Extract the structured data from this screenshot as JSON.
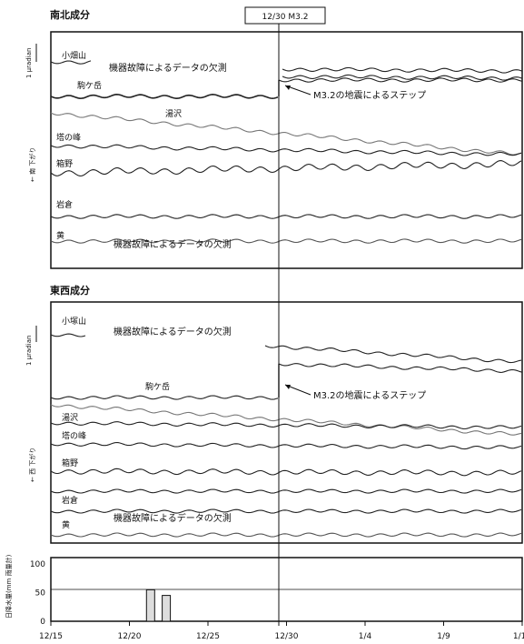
{
  "chart_data": [
    {
      "type": "line",
      "title": "南北成分",
      "scale_label": "1 μradian",
      "direction_label": "← 南 下がり",
      "event_label": "12/30 M3.2",
      "series": [
        {
          "name": "小畑山"
        },
        {
          "name": "駒ケ岳"
        },
        {
          "name": "湯沢"
        },
        {
          "name": "塔の峰"
        },
        {
          "name": "箱野"
        },
        {
          "name": "岩倉"
        },
        {
          "name": "黄"
        }
      ],
      "annotations": [
        "機器故障によるデータの欠測",
        "M3.2の地震によるステップ",
        "機器故障によるデータの欠測"
      ]
    },
    {
      "type": "line",
      "title": "東西成分",
      "scale_label": "1 μradian",
      "direction_label": "← 西 下がり",
      "series": [
        {
          "name": "小塚山"
        },
        {
          "name": "駒ケ岳"
        },
        {
          "name": "湯沢"
        },
        {
          "name": "塔の峰"
        },
        {
          "name": "箱野"
        },
        {
          "name": "岩倉"
        },
        {
          "name": "黄"
        }
      ],
      "annotations": [
        "機器故障によるデータの欠測",
        "M3.2の地震によるステップ",
        "機器故障によるデータの欠測"
      ]
    },
    {
      "type": "bar",
      "ylabel": "日降水量(mm 雨量計)",
      "ylim": [
        0,
        100
      ],
      "yticks": [
        "100",
        "50",
        "0"
      ],
      "x": [
        "12/21",
        "12/22"
      ],
      "values": [
        55,
        45
      ],
      "xticks": [
        "12/15",
        "12/20",
        "12/25",
        "12/30",
        "1/4",
        "1/9",
        "1/14"
      ]
    }
  ]
}
